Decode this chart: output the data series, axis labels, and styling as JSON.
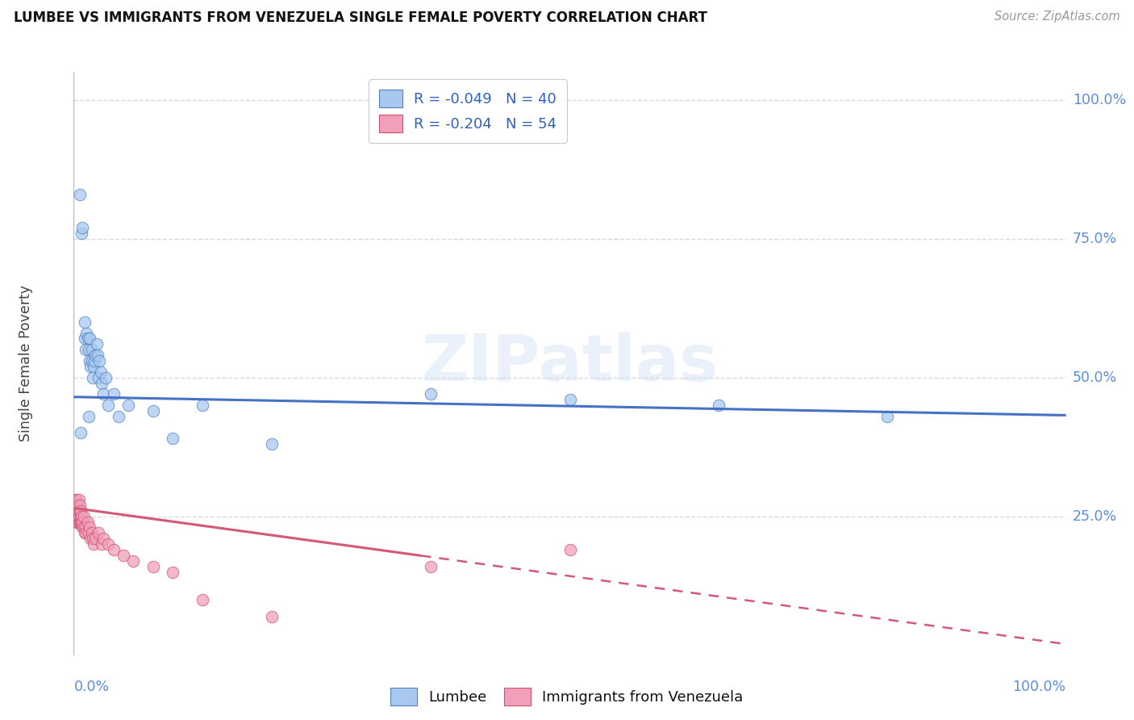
{
  "title": "LUMBEE VS IMMIGRANTS FROM VENEZUELA SINGLE FEMALE POVERTY CORRELATION CHART",
  "source": "Source: ZipAtlas.com",
  "ylabel": "Single Female Poverty",
  "legend_label1": "Lumbee",
  "legend_label2": "Immigrants from Venezuela",
  "r1": -0.049,
  "n1": 40,
  "r2": -0.204,
  "n2": 54,
  "color_blue": "#a8c8f0",
  "color_pink": "#f0a0b8",
  "edge_blue": "#5080c0",
  "edge_pink": "#d05070",
  "line_blue": "#4472c4",
  "line_pink": "#d45878",
  "watermark": "ZIPatlas",
  "blue_x": [
    0.006,
    0.008,
    0.009,
    0.011,
    0.011,
    0.012,
    0.013,
    0.014,
    0.015,
    0.016,
    0.016,
    0.017,
    0.018,
    0.018,
    0.019,
    0.02,
    0.021,
    0.022,
    0.023,
    0.024,
    0.025,
    0.026,
    0.027,
    0.028,
    0.03,
    0.032,
    0.035,
    0.04,
    0.045,
    0.055,
    0.08,
    0.1,
    0.13,
    0.2,
    0.36,
    0.5,
    0.65,
    0.82,
    0.007,
    0.015
  ],
  "blue_y": [
    0.83,
    0.76,
    0.77,
    0.6,
    0.57,
    0.55,
    0.58,
    0.57,
    0.55,
    0.57,
    0.53,
    0.52,
    0.55,
    0.53,
    0.5,
    0.52,
    0.53,
    0.54,
    0.56,
    0.54,
    0.5,
    0.53,
    0.51,
    0.49,
    0.47,
    0.5,
    0.45,
    0.47,
    0.43,
    0.45,
    0.44,
    0.39,
    0.45,
    0.38,
    0.47,
    0.46,
    0.45,
    0.43,
    0.4,
    0.43
  ],
  "pink_x": [
    0.001,
    0.001,
    0.002,
    0.002,
    0.002,
    0.003,
    0.003,
    0.003,
    0.003,
    0.003,
    0.004,
    0.004,
    0.004,
    0.004,
    0.005,
    0.005,
    0.005,
    0.005,
    0.006,
    0.006,
    0.006,
    0.007,
    0.007,
    0.007,
    0.008,
    0.008,
    0.009,
    0.009,
    0.01,
    0.01,
    0.011,
    0.012,
    0.013,
    0.014,
    0.015,
    0.016,
    0.017,
    0.018,
    0.019,
    0.02,
    0.022,
    0.025,
    0.028,
    0.03,
    0.035,
    0.04,
    0.05,
    0.06,
    0.08,
    0.1,
    0.13,
    0.2,
    0.36,
    0.5
  ],
  "pink_y": [
    0.27,
    0.25,
    0.26,
    0.27,
    0.28,
    0.25,
    0.26,
    0.27,
    0.28,
    0.24,
    0.24,
    0.25,
    0.26,
    0.27,
    0.25,
    0.26,
    0.28,
    0.24,
    0.24,
    0.26,
    0.27,
    0.24,
    0.25,
    0.26,
    0.24,
    0.25,
    0.23,
    0.24,
    0.23,
    0.25,
    0.22,
    0.23,
    0.22,
    0.24,
    0.22,
    0.23,
    0.21,
    0.22,
    0.21,
    0.2,
    0.21,
    0.22,
    0.2,
    0.21,
    0.2,
    0.19,
    0.18,
    0.17,
    0.16,
    0.15,
    0.1,
    0.07,
    0.16,
    0.19
  ],
  "xlim": [
    0.0,
    1.0
  ],
  "ylim": [
    0.0,
    1.05
  ],
  "ytick_vals": [
    0.25,
    0.5,
    0.75,
    1.0
  ],
  "ytick_labels": [
    "25.0%",
    "50.0%",
    "75.0%",
    "100.0%"
  ],
  "background_color": "#ffffff",
  "grid_color": "#d8d8ec"
}
